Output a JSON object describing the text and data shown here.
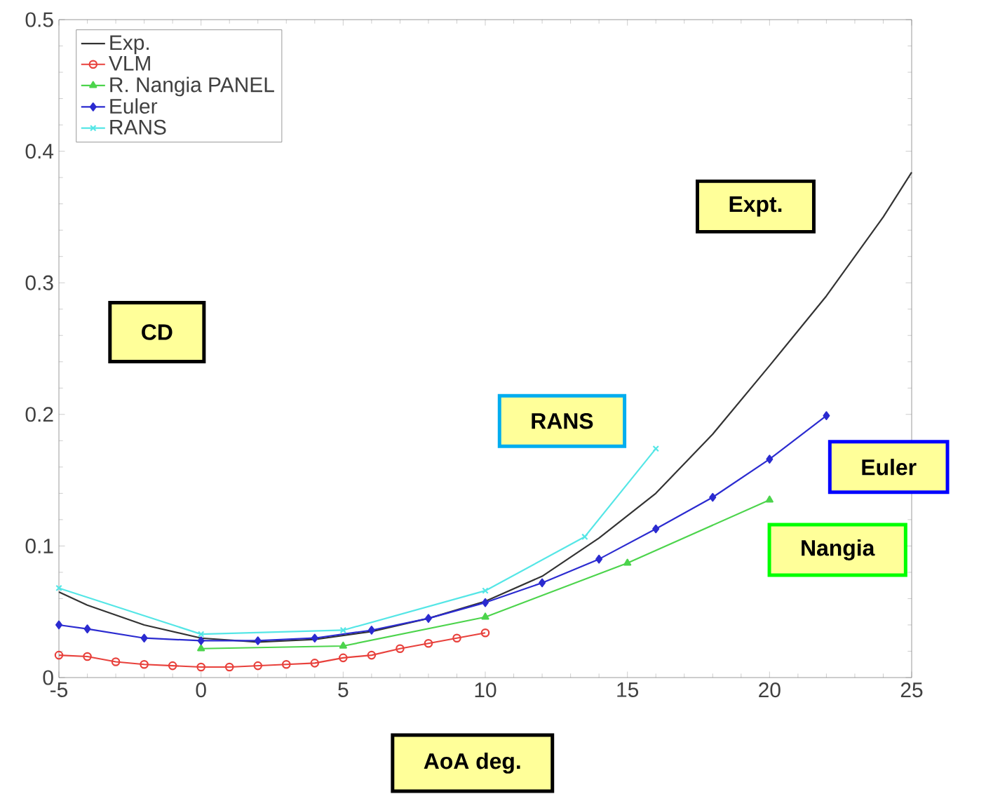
{
  "chart_data": {
    "type": "line",
    "xlabel": "AoA deg.",
    "ylabel": "CD",
    "xlim": [
      -5,
      25
    ],
    "ylim": [
      0,
      0.5
    ],
    "xticks": [
      -5,
      0,
      5,
      10,
      15,
      20,
      25
    ],
    "yticks": [
      0,
      0.1,
      0.2,
      0.3,
      0.4,
      0.5
    ],
    "legend": "top left",
    "grid": false,
    "series": [
      {
        "name": "Exp.",
        "color": "#333333",
        "marker": "none",
        "x": [
          -5,
          -4,
          -2,
          0,
          2,
          4,
          6,
          8,
          10,
          12,
          14,
          16,
          18,
          20,
          22,
          24,
          25
        ],
        "values": [
          0.065,
          0.055,
          0.04,
          0.03,
          0.027,
          0.029,
          0.035,
          0.045,
          0.058,
          0.077,
          0.106,
          0.14,
          0.185,
          0.237,
          0.29,
          0.35,
          0.384
        ]
      },
      {
        "name": "VLM",
        "color": "#e8413c",
        "marker": "circle",
        "x": [
          -5,
          -4,
          -3,
          -2,
          -1,
          0,
          1,
          2,
          3,
          4,
          5,
          6,
          7,
          8,
          9,
          10
        ],
        "values": [
          0.017,
          0.016,
          0.012,
          0.01,
          0.009,
          0.008,
          0.008,
          0.009,
          0.01,
          0.011,
          0.015,
          0.017,
          0.022,
          0.026,
          0.03,
          0.034
        ]
      },
      {
        "name": "R. Nangia PANEL",
        "color": "#4cd44c",
        "marker": "triangle",
        "x": [
          0,
          5,
          10,
          15,
          20
        ],
        "values": [
          0.022,
          0.024,
          0.046,
          0.087,
          0.135
        ]
      },
      {
        "name": "Euler",
        "color": "#2b2bd0",
        "marker": "diamond",
        "x": [
          -5,
          -4,
          -2,
          0,
          2,
          4,
          6,
          8,
          10,
          12,
          14,
          16,
          18,
          20,
          22
        ],
        "values": [
          0.04,
          0.037,
          0.03,
          0.028,
          0.028,
          0.03,
          0.036,
          0.045,
          0.057,
          0.072,
          0.09,
          0.113,
          0.137,
          0.166,
          0.199
        ]
      },
      {
        "name": "RANS",
        "color": "#55e6e6",
        "marker": "cross",
        "x": [
          -5,
          0,
          5,
          10,
          13.5,
          16
        ],
        "values": [
          0.068,
          0.033,
          0.036,
          0.066,
          0.107,
          0.174
        ]
      }
    ],
    "annotations": [
      "Expt.",
      "RANS",
      "Euler",
      "Nangia"
    ]
  }
}
